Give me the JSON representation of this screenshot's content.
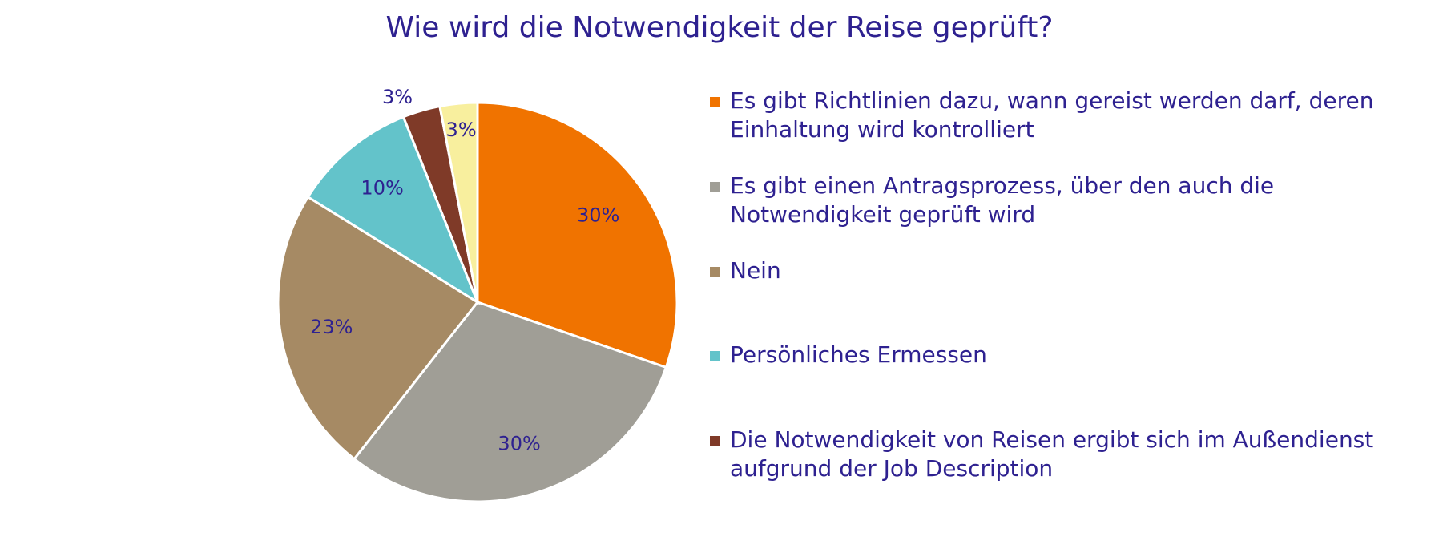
{
  "chart_data": {
    "type": "pie",
    "title": "Wie wird die Notwendigkeit der Reise geprüft?",
    "slices": [
      {
        "label": "Es gibt Richtlinien dazu, wann gereist werden darf, deren Einhaltung wird kontrolliert",
        "value": 30,
        "display": "30%",
        "color": "#f07300"
      },
      {
        "label": "Es gibt einen Antragsprozess, über den auch die Notwendigkeit geprüft wird",
        "value": 30,
        "display": "30%",
        "color": "#a09e96"
      },
      {
        "label": "Nein",
        "value": 23,
        "display": "23%",
        "color": "#a68a64"
      },
      {
        "label": "Persönliches Ermessen",
        "value": 10,
        "display": "10%",
        "color": "#63c3ca"
      },
      {
        "label": "Die Notwendigkeit von Reisen ergibt sich im Außendienst aufgrund der Job Description",
        "value": 3,
        "display": "3%",
        "color": "#7f3a28"
      },
      {
        "label": "",
        "value": 3,
        "display": "3%",
        "color": "#f8ef9e"
      }
    ],
    "legend_position": "right",
    "label_color": "#2e2190"
  }
}
